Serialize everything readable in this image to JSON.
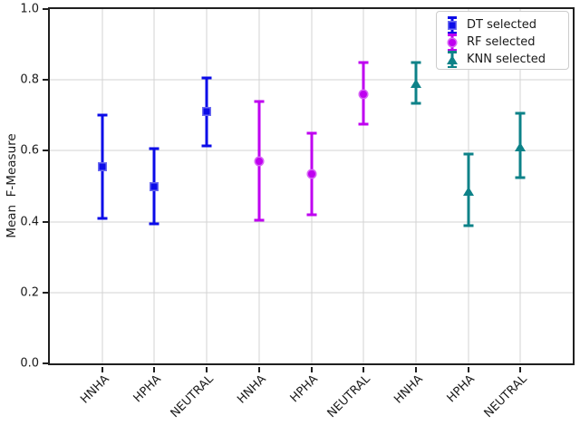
{
  "figure": {
    "background": "#ffffff",
    "grid_color": "#d3d3d3",
    "spine_color": "#1f1f1f",
    "text_color": "#1a1a1a"
  },
  "chart_data": {
    "type": "scatter",
    "subtype": "errorbar",
    "title": "",
    "xlabel": "",
    "ylabel": "Mean  F-Measure",
    "ylim": [
      0.0,
      1.0
    ],
    "yticks": [
      0.0,
      0.2,
      0.4,
      0.6,
      0.8,
      1.0
    ],
    "grid": true,
    "legend_position": "upper right",
    "categories": [
      "HNHA",
      "HPHA",
      "NEUTRAL",
      "HNHA",
      "HPHA",
      "NEUTRAL",
      "HNHA",
      "HPHA",
      "NEUTRAL"
    ],
    "series": [
      {
        "name": "DT selected",
        "marker": "square",
        "color": "#0b0be8",
        "points": [
          {
            "category_index": 0,
            "label": "HNHA",
            "mean": 0.555,
            "err_low": 0.41,
            "err_high": 0.7
          },
          {
            "category_index": 1,
            "label": "HPHA",
            "mean": 0.5,
            "err_low": 0.395,
            "err_high": 0.605
          },
          {
            "category_index": 2,
            "label": "NEUTRAL",
            "mean": 0.71,
            "err_low": 0.615,
            "err_high": 0.805
          }
        ]
      },
      {
        "name": "RF selected",
        "marker": "circle",
        "color": "#bf00f0",
        "points": [
          {
            "category_index": 3,
            "label": "HNHA",
            "mean": 0.57,
            "err_low": 0.405,
            "err_high": 0.74
          },
          {
            "category_index": 4,
            "label": "HPHA",
            "mean": 0.535,
            "err_low": 0.42,
            "err_high": 0.65
          },
          {
            "category_index": 5,
            "label": "NEUTRAL",
            "mean": 0.76,
            "err_low": 0.675,
            "err_high": 0.85
          }
        ]
      },
      {
        "name": "KNN selected",
        "marker": "triangle",
        "color": "#0d8288",
        "points": [
          {
            "category_index": 6,
            "label": "HNHA",
            "mean": 0.79,
            "err_low": 0.735,
            "err_high": 0.85
          },
          {
            "category_index": 7,
            "label": "HPHA",
            "mean": 0.485,
            "err_low": 0.39,
            "err_high": 0.59
          },
          {
            "category_index": 8,
            "label": "NEUTRAL",
            "mean": 0.61,
            "err_low": 0.525,
            "err_high": 0.705
          }
        ]
      }
    ]
  }
}
